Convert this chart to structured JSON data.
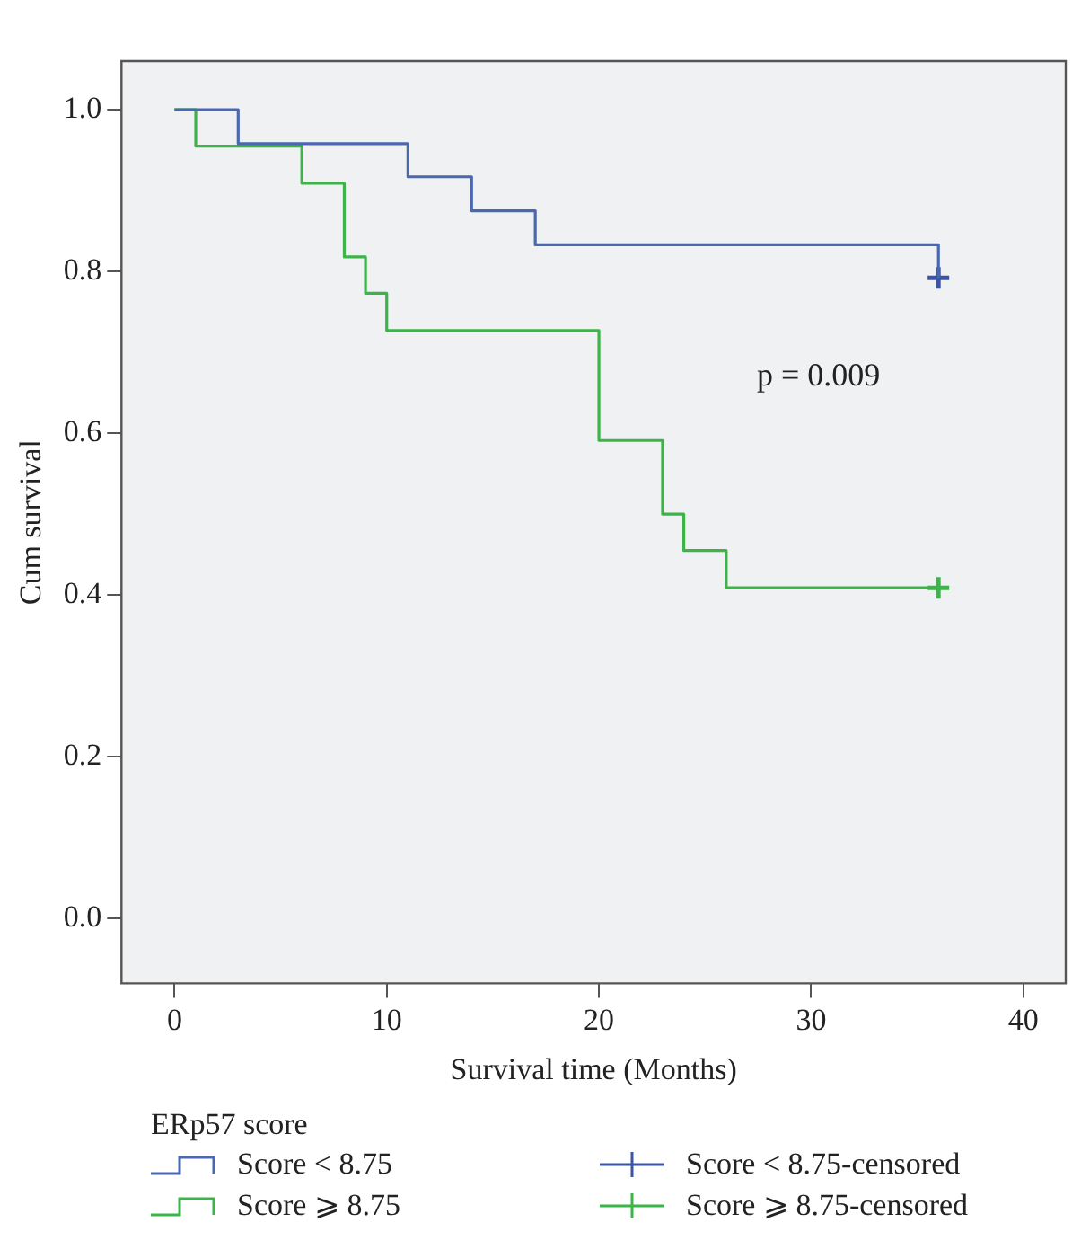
{
  "chart_data": {
    "type": "step",
    "xlabel": "Survival time (Months)",
    "ylabel": "Cum survival",
    "legend_title": "ERp57 score",
    "legend": "bottom",
    "grid": false,
    "line_style": "solid",
    "xlim": [
      -2.5,
      42
    ],
    "xticks": [
      0,
      10,
      20,
      30,
      40
    ],
    "ylim": [
      -0.08,
      1.06
    ],
    "yticks": [
      {
        "value": 0,
        "label": "0.0"
      },
      {
        "value": 0.2,
        "label": "0.2"
      },
      {
        "value": 0.4,
        "label": "0.4"
      },
      {
        "value": 0.6,
        "label": "0.6"
      },
      {
        "value": 0.8,
        "label": "0.8"
      },
      {
        "value": 1,
        "label": "1.0"
      }
    ],
    "series": [
      {
        "name": "Score < 8.75",
        "color": "#4a68b0",
        "x": [
          0,
          3,
          11,
          14,
          17,
          36
        ],
        "values": [
          1,
          0.958,
          0.917,
          0.875,
          0.833,
          0.792
        ]
      },
      {
        "name": "Score ⩾ 8.75",
        "color": "#3cb44a",
        "x": [
          0,
          1,
          6,
          8,
          9,
          10,
          20,
          23,
          24,
          26,
          36
        ],
        "values": [
          1,
          0.955,
          0.909,
          0.818,
          0.773,
          0.727,
          0.591,
          0.5,
          0.455,
          0.409,
          0.409
        ]
      },
      {
        "name": "Score < 8.75-censored",
        "type": "scatter",
        "marker": "cross",
        "color": "#3a55a8",
        "x": [
          36
        ],
        "values": [
          0.792
        ]
      },
      {
        "name": "Score ⩾ 8.75-censored",
        "type": "scatter",
        "marker": "cross",
        "color": "#3cb44a",
        "x": [
          36
        ],
        "values": [
          0.409
        ]
      }
    ],
    "annotations": [
      "p = 0.009"
    ]
  }
}
